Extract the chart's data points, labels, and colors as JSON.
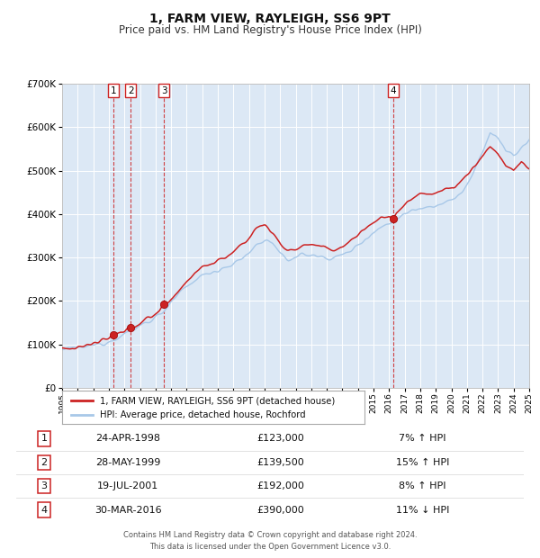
{
  "title": "1, FARM VIEW, RAYLEIGH, SS6 9PT",
  "subtitle": "Price paid vs. HM Land Registry's House Price Index (HPI)",
  "legend_line1": "1, FARM VIEW, RAYLEIGH, SS6 9PT (detached house)",
  "legend_line2": "HPI: Average price, detached house, Rochford",
  "footer1": "Contains HM Land Registry data © Crown copyright and database right 2024.",
  "footer2": "This data is licensed under the Open Government Licence v3.0.",
  "transactions": [
    {
      "num": 1,
      "date": "24-APR-1998",
      "price": 123000,
      "change": "7% ↑ HPI",
      "year": 1998.3
    },
    {
      "num": 2,
      "date": "28-MAY-1999",
      "price": 139500,
      "change": "15% ↑ HPI",
      "year": 1999.41
    },
    {
      "num": 3,
      "date": "19-JUL-2001",
      "price": 192000,
      "change": "8% ↑ HPI",
      "year": 2001.55
    },
    {
      "num": 4,
      "date": "30-MAR-2016",
      "price": 390000,
      "change": "11% ↓ HPI",
      "year": 2016.25
    }
  ],
  "hpi_color": "#a8c8e8",
  "price_color": "#cc2222",
  "background_color": "#dce8f5",
  "xmin": 1995,
  "xmax": 2025,
  "ymin": 0,
  "ymax": 700000,
  "yticks": [
    0,
    100000,
    200000,
    300000,
    400000,
    500000,
    600000,
    700000
  ]
}
